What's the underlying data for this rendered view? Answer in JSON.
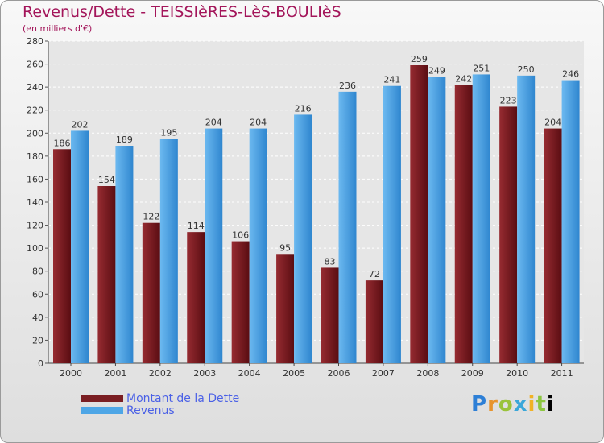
{
  "chart_data": {
    "type": "bar",
    "title": "Revenus/Dette - TEISSIèRES-LèS-BOULIèS",
    "subtitle": "(en milliers d'€)",
    "categories": [
      "2000",
      "2001",
      "2002",
      "2003",
      "2004",
      "2005",
      "2006",
      "2007",
      "2008",
      "2009",
      "2010",
      "2011"
    ],
    "series": [
      {
        "name": "Montant de la Dette",
        "color": "#7a1e22",
        "values": [
          186,
          154,
          122,
          114,
          106,
          95,
          83,
          72,
          259,
          242,
          223,
          204
        ]
      },
      {
        "name": "Revenus",
        "color": "#4ea6e6",
        "values": [
          202,
          189,
          195,
          204,
          204,
          216,
          236,
          241,
          249,
          251,
          250,
          246
        ]
      }
    ],
    "ylim": [
      0,
      280
    ],
    "yticks": [
      0,
      20,
      40,
      60,
      80,
      100,
      120,
      140,
      160,
      180,
      200,
      220,
      240,
      260,
      280
    ],
    "grid": true,
    "legend": "bottom-left"
  },
  "logo_text": "Proxiti"
}
